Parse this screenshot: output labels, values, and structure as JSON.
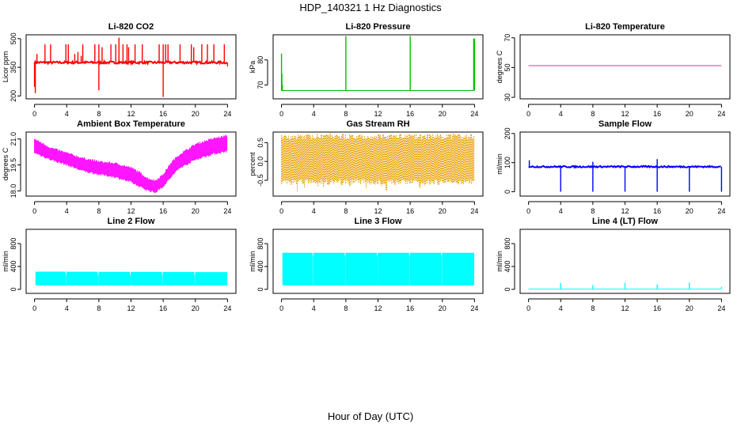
{
  "figure": {
    "title": "HDP_140321  1 Hz Diagnostics",
    "xlabel": "Hour of Day (UTC)"
  },
  "chart_data": [
    {
      "type": "line",
      "title": "Li-820 CO2",
      "ylabel": "Licor ppm",
      "color": "#ff0000",
      "xlim": [
        0,
        24
      ],
      "ylim": [
        185,
        520
      ],
      "yticks": [
        200,
        350,
        500
      ],
      "xticks": [
        0,
        4,
        8,
        12,
        16,
        20,
        24
      ],
      "series": [
        {
          "baseline": 375,
          "noise": 12,
          "x": [
            0,
            0.1,
            0.3,
            1.3,
            2.0,
            3.9,
            4.2,
            5.0,
            5.4,
            5.8,
            6.0,
            7.5,
            8.0,
            8.0,
            8.4,
            9.5,
            10.1,
            10.5,
            11.0,
            11.5,
            11.7,
            12.5,
            13.4,
            15.5,
            16.0,
            16.0,
            16.3,
            16.6,
            18.1,
            19.5,
            19.8,
            20.8,
            21.5,
            22.3,
            23.6,
            24.0
          ],
          "y": [
            248,
            215,
            420,
            470,
            470,
            470,
            470,
            420,
            430,
            410,
            470,
            470,
            230,
            470,
            455,
            470,
            470,
            505,
            470,
            470,
            455,
            470,
            470,
            470,
            195,
            470,
            470,
            470,
            470,
            470,
            455,
            470,
            470,
            470,
            470,
            355
          ]
        }
      ]
    },
    {
      "type": "line",
      "title": "Li-820 Pressure",
      "ylabel": "kPa",
      "color": "#00c000",
      "xlim": [
        0,
        24
      ],
      "ylim": [
        64.5,
        90
      ],
      "yticks": [
        70,
        80
      ],
      "xticks": [
        0,
        4,
        8,
        12,
        16,
        20,
        24
      ],
      "series": [
        {
          "baseline": 67.8,
          "x": [
            0.0,
            0.05,
            0.1,
            8.0,
            16.0,
            23.9,
            24.0
          ],
          "y": [
            82.5,
            74.5,
            70.0,
            89.5,
            89.5,
            88.5,
            88.5
          ]
        }
      ]
    },
    {
      "type": "line",
      "title": "Li-820 Temperature",
      "ylabel": "degrees C",
      "color": "#c0408c",
      "xlim": [
        0,
        24
      ],
      "ylim": [
        29,
        72
      ],
      "yticks": [
        30,
        50,
        70
      ],
      "xticks": [
        0,
        4,
        8,
        12,
        16,
        20,
        24
      ],
      "series": [
        {
          "x": [
            0,
            24
          ],
          "y": [
            51.3,
            51.3
          ]
        }
      ]
    },
    {
      "type": "area",
      "title": "Ambient Box Temperature",
      "ylabel": "degrees C",
      "color": "#ff00ff",
      "xlim": [
        0,
        24
      ],
      "ylim": [
        17.7,
        21.4
      ],
      "yticks": [
        18.0,
        19.5,
        21.0
      ],
      "ytick_labels": [
        "18.0",
        "19.5",
        "21.0"
      ],
      "xticks": [
        0,
        4,
        8,
        12,
        16,
        20,
        24
      ],
      "series": [
        {
          "x": [
            0,
            2,
            4,
            6,
            8,
            10,
            12,
            13,
            14,
            15,
            16,
            17,
            18,
            20,
            22,
            24
          ],
          "upper": [
            21.0,
            20.5,
            20.2,
            19.9,
            19.7,
            19.6,
            19.35,
            19.1,
            18.75,
            18.6,
            18.95,
            19.65,
            20.1,
            20.7,
            21.0,
            21.2
          ],
          "lower": [
            20.2,
            19.8,
            19.5,
            19.15,
            18.95,
            18.8,
            18.5,
            18.25,
            18.05,
            17.9,
            18.25,
            18.8,
            19.3,
            19.8,
            20.1,
            20.3
          ]
        }
      ]
    },
    {
      "type": "area",
      "title": "Gas Stream RH",
      "ylabel": "percent",
      "color": "#e8a000",
      "xlim": [
        0,
        24
      ],
      "ylim": [
        -0.92,
        0.78
      ],
      "yticks": [
        -0.5,
        0.0,
        0.5
      ],
      "ytick_labels": [
        "-0.5",
        "0.0",
        "0.5"
      ],
      "xticks": [
        0,
        4,
        8,
        12,
        16,
        20,
        24
      ],
      "series": [
        {
          "x": [
            0,
            24
          ],
          "upper": [
            0.65,
            0.65
          ],
          "lower": [
            -0.55,
            -0.55
          ],
          "extreme_max": 0.72,
          "extreme_min": -0.8
        }
      ]
    },
    {
      "type": "line",
      "title": "Sample Flow",
      "ylabel": "ml/min",
      "color": "#0000ff",
      "xlim": [
        0,
        24
      ],
      "ylim": [
        -15,
        205
      ],
      "yticks": [
        0,
        100,
        200
      ],
      "xticks": [
        0,
        4,
        8,
        12,
        16,
        20,
        24
      ],
      "series": [
        {
          "baseline": 86,
          "noise": 5,
          "x": [
            0.1,
            4.0,
            8.0,
            8.0,
            12.0,
            16.0,
            16.0,
            20.0,
            24.0
          ],
          "y": [
            108,
            0,
            0,
            103,
            0,
            0,
            112,
            0,
            0
          ]
        }
      ]
    },
    {
      "type": "area",
      "title": "Line 2 Flow",
      "ylabel": "ml/min",
      "color": "#00ffff",
      "xlim": [
        0,
        24
      ],
      "ylim": [
        -70,
        1050
      ],
      "yticks": [
        0,
        400,
        800
      ],
      "xticks": [
        0,
        4,
        8,
        12,
        16,
        20,
        24
      ],
      "series": [
        {
          "x": [
            0,
            24
          ],
          "upper": [
            310,
            300
          ],
          "lower": [
            70,
            70
          ],
          "gaps": [
            3.9,
            7.9,
            11.9,
            15.9,
            19.9
          ]
        }
      ]
    },
    {
      "type": "area",
      "title": "Line 3 Flow",
      "ylabel": "ml/min",
      "color": "#00ffff",
      "xlim": [
        0,
        24
      ],
      "ylim": [
        -70,
        1050
      ],
      "yticks": [
        0,
        400,
        800
      ],
      "xticks": [
        0,
        4,
        8,
        12,
        16,
        20,
        24
      ],
      "series": [
        {
          "x": [
            0,
            24
          ],
          "upper": [
            640,
            640
          ],
          "lower": [
            70,
            70
          ],
          "gaps": [
            3.9,
            7.9,
            11.9,
            15.9,
            19.9
          ]
        }
      ]
    },
    {
      "type": "line",
      "title": "Line 4 (LT) Flow",
      "ylabel": "ml/min",
      "color": "#00ffff",
      "xlim": [
        0,
        24
      ],
      "ylim": [
        -70,
        1050
      ],
      "yticks": [
        0,
        400,
        800
      ],
      "xticks": [
        0,
        4,
        8,
        12,
        16,
        20,
        24
      ],
      "series": [
        {
          "baseline": 5,
          "x": [
            4.0,
            8.0,
            12.0,
            16.0,
            20.0,
            24.0
          ],
          "y": [
            110,
            75,
            115,
            85,
            120,
            45
          ]
        }
      ]
    }
  ]
}
